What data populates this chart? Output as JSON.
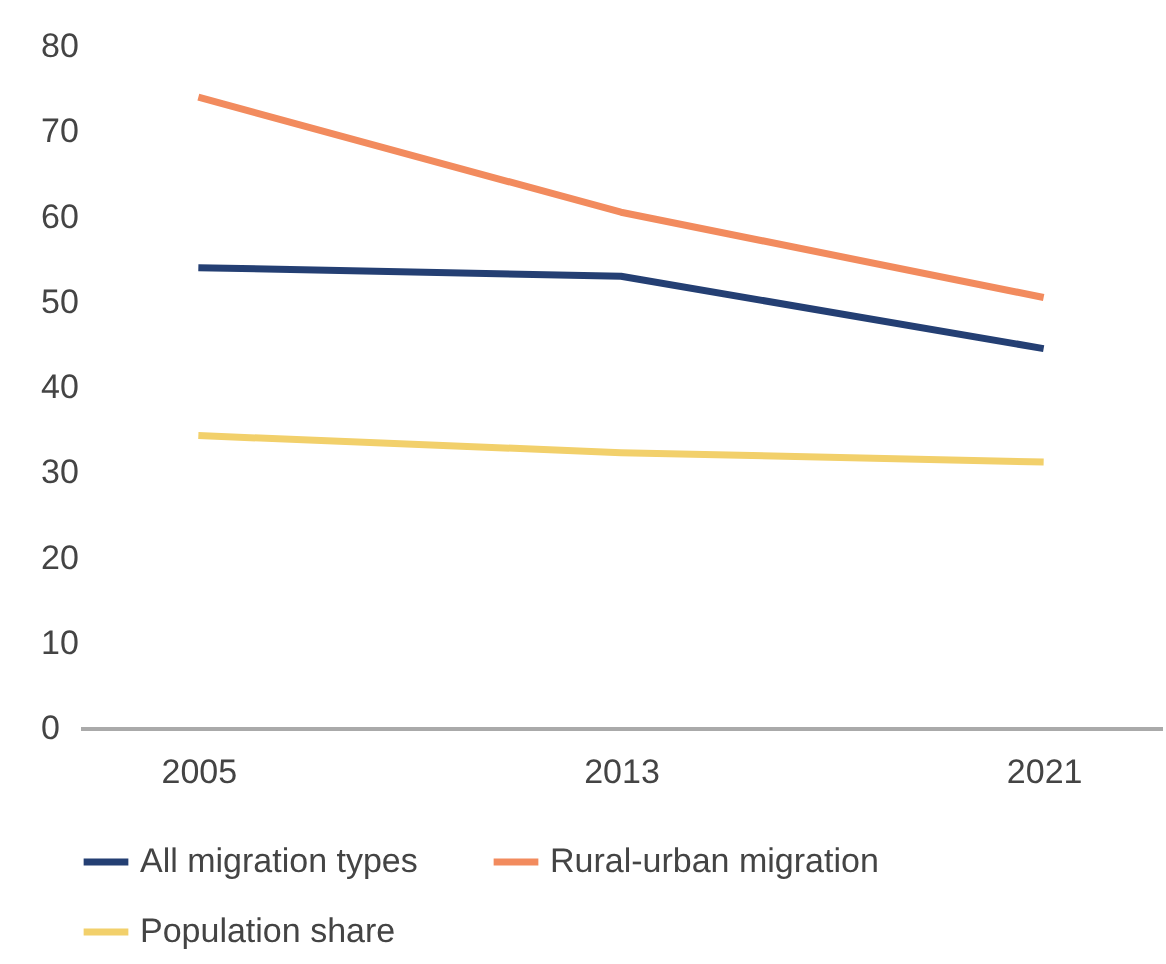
{
  "chart_data": {
    "type": "line",
    "categories": [
      "2005",
      "2013",
      "2021"
    ],
    "series": [
      {
        "name": "All migration types",
        "color": "#243f73",
        "values": [
          54,
          53,
          44.5
        ]
      },
      {
        "name": "Rural-urban migration",
        "color": "#f28b5e",
        "values": [
          74,
          60.5,
          50.5
        ]
      },
      {
        "name": "Population share",
        "color": "#f2d06b",
        "values": [
          34.3,
          32.3,
          31.2
        ]
      }
    ],
    "ylim": [
      0,
      80
    ],
    "yticks": [
      0,
      10,
      20,
      30,
      40,
      50,
      60,
      70,
      80
    ],
    "grid": false,
    "legend": "bottom",
    "marker": "none",
    "line_style": "solid"
  }
}
